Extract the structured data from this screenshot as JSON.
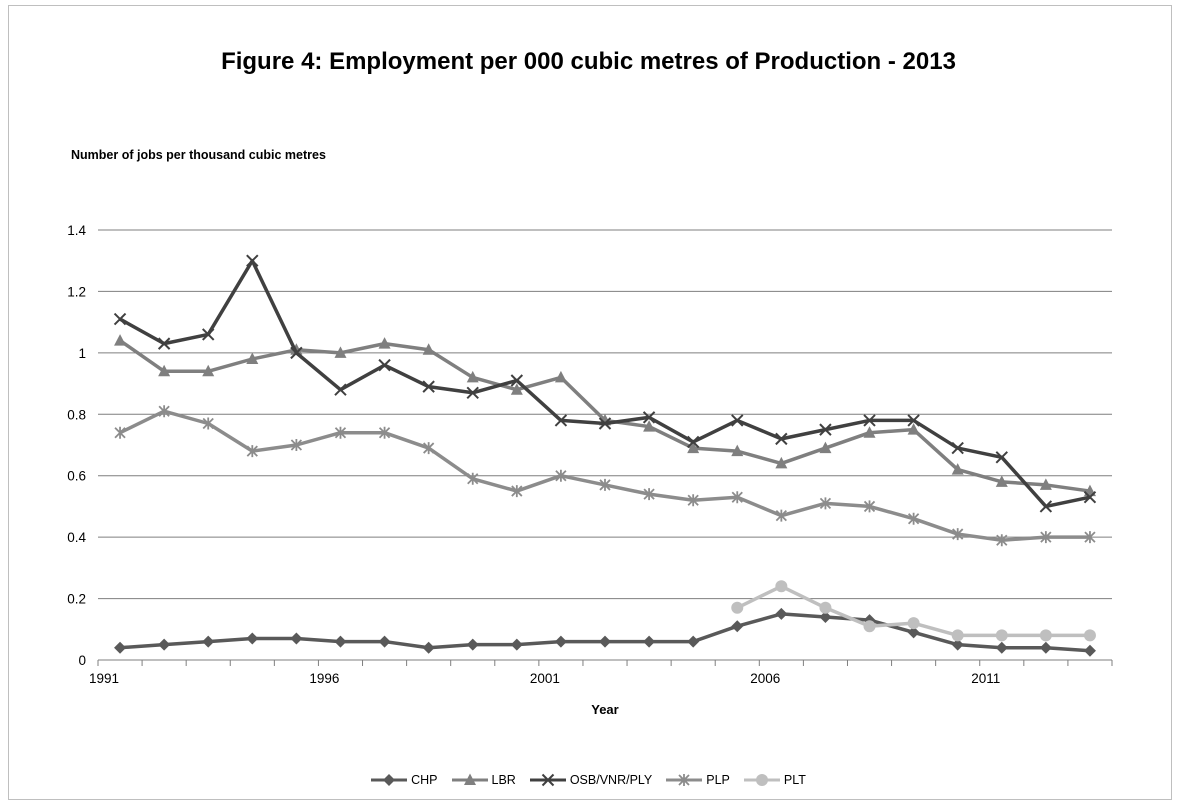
{
  "chart_data": {
    "type": "line",
    "title": "Figure 4:  Employment per 000 cubic metres of Production - 2013",
    "ylabel": "Number of jobs per thousand cubic metres",
    "xlabel": "Year",
    "ylim": [
      0,
      1.4
    ],
    "yticks": [
      "0",
      "0.2",
      "0.4",
      "0.6",
      "0.8",
      "1",
      "1.2",
      "1.4"
    ],
    "xtick_labels": [
      "1991",
      "1996",
      "2001",
      "2006",
      "2011"
    ],
    "x": [
      1991,
      1992,
      1993,
      1994,
      1995,
      1996,
      1997,
      1998,
      1999,
      2000,
      2001,
      2002,
      2003,
      2004,
      2005,
      2006,
      2007,
      2008,
      2009,
      2010,
      2011,
      2012,
      2013
    ],
    "grid": "horizontal",
    "legend_position": "bottom",
    "series": [
      {
        "name": "CHP",
        "color": "#595959",
        "marker": "diamond",
        "values": [
          0.04,
          0.05,
          0.06,
          0.07,
          0.07,
          0.06,
          0.06,
          0.04,
          0.05,
          0.05,
          0.06,
          0.06,
          0.06,
          0.06,
          0.11,
          0.15,
          0.14,
          0.13,
          0.09,
          0.05,
          0.04,
          0.04,
          0.03
        ]
      },
      {
        "name": "LBR",
        "color": "#7f7f7f",
        "marker": "triangle",
        "values": [
          1.04,
          0.94,
          0.94,
          0.98,
          1.01,
          1.0,
          1.03,
          1.01,
          0.92,
          0.88,
          0.92,
          0.78,
          0.76,
          0.69,
          0.68,
          0.64,
          0.69,
          0.74,
          0.75,
          0.62,
          0.58,
          0.57,
          0.55
        ]
      },
      {
        "name": "OSB/VNR/PLY",
        "color": "#404040",
        "marker": "x",
        "values": [
          1.11,
          1.03,
          1.06,
          1.3,
          1.0,
          0.88,
          0.96,
          0.89,
          0.87,
          0.91,
          0.78,
          0.77,
          0.79,
          0.71,
          0.78,
          0.72,
          0.75,
          0.78,
          0.78,
          0.69,
          0.66,
          0.5,
          0.53
        ]
      },
      {
        "name": "PLP",
        "color": "#8c8c8c",
        "marker": "star",
        "values": [
          0.74,
          0.81,
          0.77,
          0.68,
          0.7,
          0.74,
          0.74,
          0.69,
          0.59,
          0.55,
          0.6,
          0.57,
          0.54,
          0.52,
          0.53,
          0.47,
          0.51,
          0.5,
          0.46,
          0.41,
          0.39,
          0.4,
          0.4
        ]
      },
      {
        "name": "PLT",
        "color": "#bfbfbf",
        "marker": "circle",
        "values": [
          null,
          null,
          null,
          null,
          null,
          null,
          null,
          null,
          null,
          null,
          null,
          null,
          null,
          null,
          0.17,
          0.24,
          0.17,
          0.11,
          0.12,
          0.08,
          0.08,
          0.08,
          0.08
        ]
      }
    ]
  }
}
